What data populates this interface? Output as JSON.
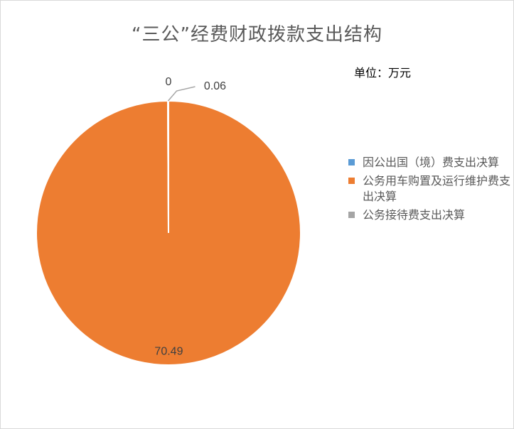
{
  "chart_data": {
    "type": "pie",
    "title": "“三公”经费财政拨款支出结构",
    "unit": "单位：万元",
    "legend_position": "right",
    "slices": [
      {
        "label": "因公出国（境）费支出决算",
        "value": 0,
        "value_label": "0",
        "color": "#5b9bd5"
      },
      {
        "label": "公务用车购置及运行维护费支出决算",
        "value": 70.49,
        "value_label": "70.49",
        "color": "#ed7d31"
      },
      {
        "label": "公务接待费支出决算",
        "value": 0.06,
        "value_label": "0.06",
        "color": "#a5a5a5"
      }
    ]
  }
}
